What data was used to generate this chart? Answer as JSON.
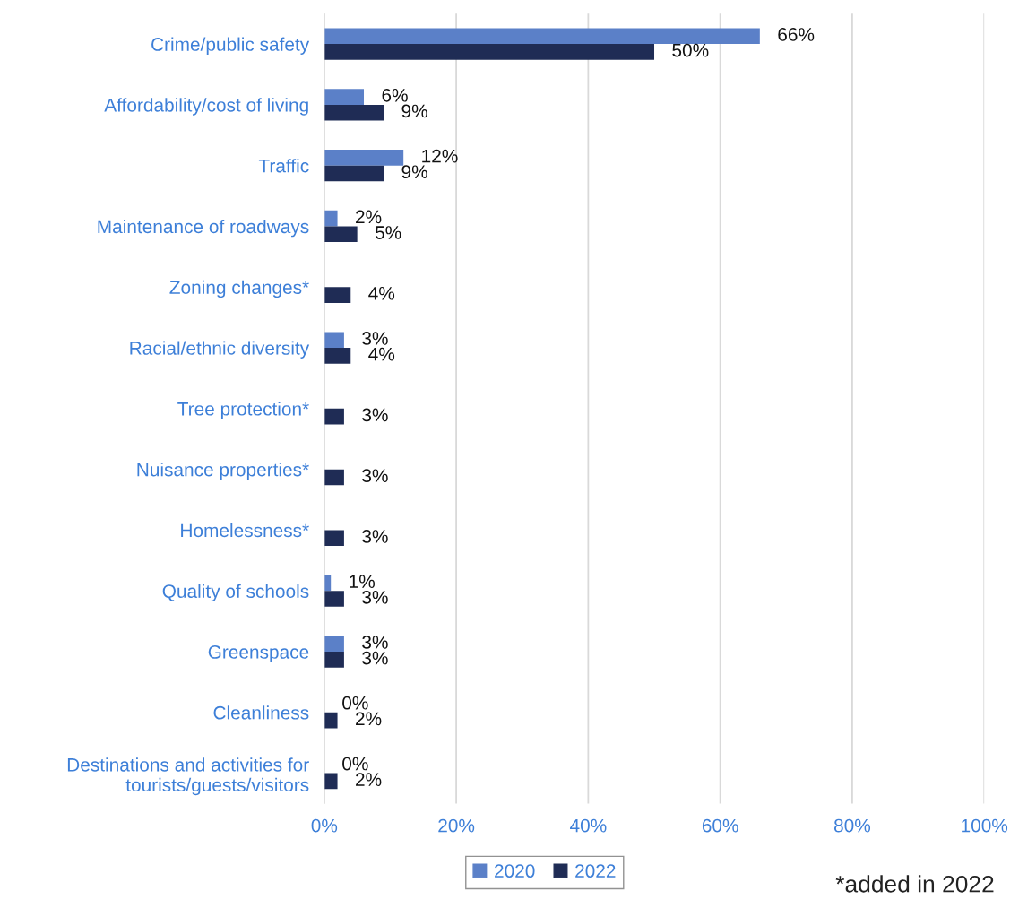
{
  "chart_data": {
    "type": "bar",
    "orientation": "horizontal",
    "categories": [
      "Crime/public safety",
      "Affordability/cost of living",
      "Traffic",
      "Maintenance of roadways",
      "Zoning changes*",
      "Racial/ethnic diversity",
      "Tree protection*",
      "Nuisance properties*",
      "Homelessness*",
      "Quality of schools",
      "Greenspace",
      "Cleanliness",
      "Destinations and activities for\ntourists/guests/visitors"
    ],
    "series": [
      {
        "name": "2020",
        "color": "#5b80c8",
        "values": [
          66,
          6,
          12,
          2,
          null,
          3,
          null,
          null,
          null,
          1,
          3,
          0,
          0
        ],
        "value_labels": [
          "66%",
          "6%",
          "12%",
          "2%",
          null,
          "3%",
          null,
          null,
          null,
          "1%",
          "3%",
          "0%",
          "0%"
        ]
      },
      {
        "name": "2022",
        "color": "#1f2c55",
        "values": [
          50,
          9,
          9,
          5,
          4,
          4,
          3,
          3,
          3,
          3,
          3,
          2,
          2
        ],
        "value_labels": [
          "50%",
          "9%",
          "9%",
          "5%",
          "4%",
          "4%",
          "3%",
          "3%",
          "3%",
          "3%",
          "3%",
          "2%",
          "2%"
        ]
      }
    ],
    "xlim": [
      0,
      100
    ],
    "xticks": [
      {
        "value": 0,
        "label": "0%"
      },
      {
        "value": 20,
        "label": "20%"
      },
      {
        "value": 40,
        "label": "40%"
      },
      {
        "value": 60,
        "label": "60%"
      },
      {
        "value": 80,
        "label": "80%"
      },
      {
        "value": 100,
        "label": "100%"
      }
    ],
    "grid": "x",
    "legend": "bottom",
    "annotations": [
      "*added in 2022"
    ]
  }
}
